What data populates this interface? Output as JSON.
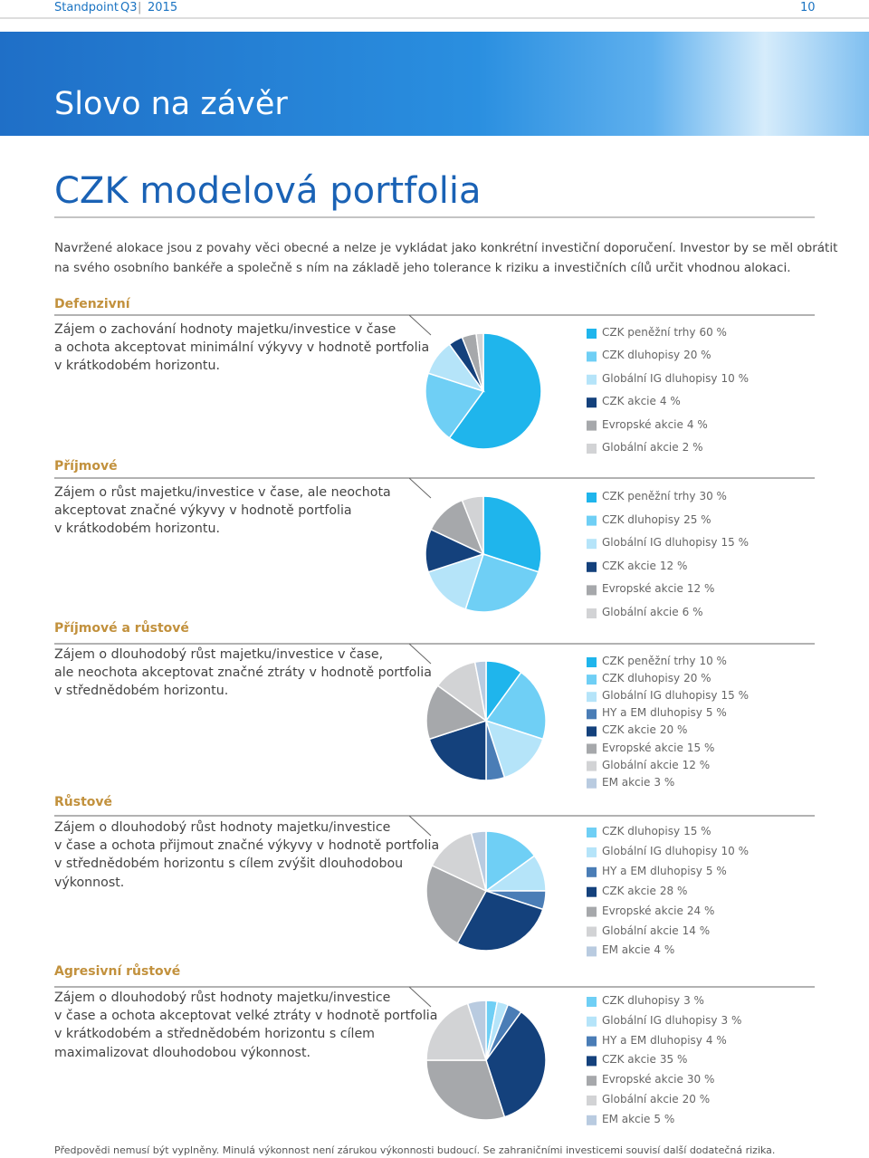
{
  "header": {
    "publication": "Standpoint",
    "quarter": "Q3",
    "year": "2015",
    "page": "10"
  },
  "banner_title": "Slovo na závěr",
  "title": "CZK modelová portfolia",
  "intro": [
    "Navržené alokace jsou z povahy věci obecné a nelze je vykládat jako konkrétní investiční doporučení. Investor by se měl obrátit",
    "na svého osobního bankéře a společně s ním na základě jeho tolerance k riziku a investičních cílů určit vhodnou alokaci."
  ],
  "sections": [
    {
      "title": "Defenzivní",
      "description": [
        "Zájem o zachování hodnoty majetku/investice v čase",
        "a ochota akceptovat minimální výkyvy v hodnotě portfolia",
        "v krátkodobém horizontu."
      ],
      "slices": [
        {
          "name": "CZK peněžní trhy",
          "value": 60,
          "label": "60 %",
          "color": "#1fb5ec"
        },
        {
          "name": "CZK dluhopisy",
          "value": 20,
          "label": "20 %",
          "color": "#6fcff5"
        },
        {
          "name": "Globální IG dluhopisy",
          "value": 10,
          "label": "10 %",
          "color": "#b5e4f9"
        },
        {
          "name": "CZK akcie",
          "value": 4,
          "label": "4 %",
          "color": "#14417c"
        },
        {
          "name": "Evropské akcie",
          "value": 4,
          "label": "4 %",
          "color": "#a6a8ab"
        },
        {
          "name": "Globální akcie",
          "value": 2,
          "label": "2 %",
          "color": "#d2d3d5"
        }
      ]
    },
    {
      "title": "Příjmové",
      "description": [
        "Zájem o růst majetku/investice v čase, ale neochota",
        "akceptovat značné výkyvy v hodnotě portfolia",
        "v krátkodobém horizontu."
      ],
      "slices": [
        {
          "name": "CZK peněžní trhy",
          "value": 30,
          "label": "30 %",
          "color": "#1fb5ec"
        },
        {
          "name": "CZK dluhopisy",
          "value": 25,
          "label": "25 %",
          "color": "#6fcff5"
        },
        {
          "name": "Globální IG dluhopisy",
          "value": 15,
          "label": "15 %",
          "color": "#b5e4f9"
        },
        {
          "name": "CZK akcie",
          "value": 12,
          "label": "12 %",
          "color": "#14417c"
        },
        {
          "name": "Evropské akcie",
          "value": 12,
          "label": "12 %",
          "color": "#a6a8ab"
        },
        {
          "name": "Globální akcie",
          "value": 6,
          "label": "6 %",
          "color": "#d2d3d5"
        }
      ]
    },
    {
      "title": "Příjmové a růstové",
      "description": [
        "Zájem o dlouhodobý růst majetku/investice v čase,",
        "ale neochota akceptovat značné ztráty v hodnotě portfolia",
        "v střednědobém horizontu."
      ],
      "slices": [
        {
          "name": "CZK peněžní trhy",
          "value": 10,
          "label": "10 %",
          "color": "#1fb5ec"
        },
        {
          "name": "CZK dluhopisy",
          "value": 20,
          "label": "20 %",
          "color": "#6fcff5"
        },
        {
          "name": "Globální IG dluhopisy",
          "value": 15,
          "label": "15 %",
          "color": "#b5e4f9"
        },
        {
          "name": "HY a EM dluhopisy",
          "value": 5,
          "label": "5 %",
          "color": "#4a7db6"
        },
        {
          "name": "CZK akcie",
          "value": 20,
          "label": "20 %",
          "color": "#14417c"
        },
        {
          "name": "Evropské akcie",
          "value": 15,
          "label": "15 %",
          "color": "#a6a8ab"
        },
        {
          "name": "Globální akcie",
          "value": 12,
          "label": "12 %",
          "color": "#d2d3d5"
        },
        {
          "name": "EM akcie",
          "value": 3,
          "label": "3 %",
          "color": "#b9cbe0"
        }
      ]
    },
    {
      "title": "Růstové",
      "description": [
        "Zájem o dlouhodobý růst hodnoty majetku/investice",
        "v čase a ochota přijmout značné výkyvy v hodnotě portfolia",
        "v střednědobém horizontu s cílem zvýšit dlouhodobou",
        "výkonnost."
      ],
      "slices": [
        {
          "name": "CZK dluhopisy",
          "value": 15,
          "label": "15 %",
          "color": "#6fcff5"
        },
        {
          "name": "Globální IG dluhopisy",
          "value": 10,
          "label": "10 %",
          "color": "#b5e4f9"
        },
        {
          "name": "HY a EM dluhopisy",
          "value": 5,
          "label": "5 %",
          "color": "#4a7db6"
        },
        {
          "name": "CZK akcie",
          "value": 28,
          "label": "28 %",
          "color": "#14417c"
        },
        {
          "name": "Evropské akcie",
          "value": 24,
          "label": "24 %",
          "color": "#a6a8ab"
        },
        {
          "name": "Globální akcie",
          "value": 14,
          "label": "14 %",
          "color": "#d2d3d5"
        },
        {
          "name": "EM akcie",
          "value": 4,
          "label": "4 %",
          "color": "#b9cbe0"
        }
      ]
    },
    {
      "title": "Agresivní růstové",
      "description": [
        "Zájem o dlouhodobý růst hodnoty majetku/investice",
        "v čase a ochota akceptovat velké ztráty v hodnotě portfolia",
        "v krátkodobém a střednědobém horizontu s cílem",
        "maximalizovat dlouhodobou výkonnost."
      ],
      "slices": [
        {
          "name": "CZK dluhopisy",
          "value": 3,
          "label": "3 %",
          "color": "#6fcff5"
        },
        {
          "name": "Globální IG dluhopisy",
          "value": 3,
          "label": "3 %",
          "color": "#b5e4f9"
        },
        {
          "name": "HY a EM dluhopisy",
          "value": 4,
          "label": "4 %",
          "color": "#4a7db6"
        },
        {
          "name": "CZK akcie",
          "value": 35,
          "label": "35 %",
          "color": "#14417c"
        },
        {
          "name": "Evropské akcie",
          "value": 30,
          "label": "30 %",
          "color": "#a6a8ab"
        },
        {
          "name": "Globální akcie",
          "value": 20,
          "label": "20 %",
          "color": "#d2d3d5"
        },
        {
          "name": "EM akcie",
          "value": 5,
          "label": "5 %",
          "color": "#b9cbe0"
        }
      ]
    }
  ],
  "footer": "Předpovědi nemusí být vyplněny. Minulá výkonnost není zárukou výkonnosti budoucí. Se zahraničními investicemi souvisí další dodatečná rizika."
}
